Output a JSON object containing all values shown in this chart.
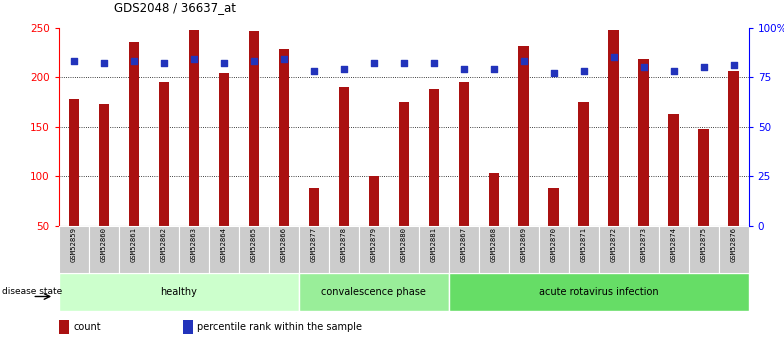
{
  "title": "GDS2048 / 36637_at",
  "samples": [
    "GSM52859",
    "GSM52860",
    "GSM52861",
    "GSM52862",
    "GSM52863",
    "GSM52864",
    "GSM52865",
    "GSM52866",
    "GSM52877",
    "GSM52878",
    "GSM52879",
    "GSM52880",
    "GSM52881",
    "GSM52867",
    "GSM52868",
    "GSM52869",
    "GSM52870",
    "GSM52871",
    "GSM52872",
    "GSM52873",
    "GSM52874",
    "GSM52875",
    "GSM52876"
  ],
  "counts": [
    178,
    173,
    235,
    195,
    248,
    204,
    247,
    228,
    88,
    190,
    100,
    175,
    188,
    195,
    103,
    231,
    88,
    175,
    248,
    218,
    163,
    148,
    206
  ],
  "percentiles": [
    83,
    82,
    83,
    82,
    84,
    82,
    83,
    84,
    78,
    79,
    82,
    82,
    82,
    79,
    79,
    83,
    77,
    78,
    85,
    80,
    78,
    80,
    81
  ],
  "groups": [
    {
      "label": "healthy",
      "start": 0,
      "end": 8,
      "color": "#ccffcc"
    },
    {
      "label": "convalescence phase",
      "start": 8,
      "end": 13,
      "color": "#99ee99"
    },
    {
      "label": "acute rotavirus infection",
      "start": 13,
      "end": 23,
      "color": "#66dd66"
    }
  ],
  "bar_color": "#aa1111",
  "dot_color": "#2233bb",
  "ylim_left": [
    50,
    250
  ],
  "ylim_right": [
    0,
    100
  ],
  "yticks_left": [
    50,
    100,
    150,
    200,
    250
  ],
  "yticks_right": [
    0,
    25,
    50,
    75,
    100
  ],
  "yticklabels_right": [
    "0",
    "25",
    "50",
    "75",
    "100%"
  ],
  "grid_values": [
    100,
    150,
    200
  ],
  "background_color": "#ffffff",
  "legend_items": [
    {
      "label": "count",
      "color": "#aa1111"
    },
    {
      "label": "percentile rank within the sample",
      "color": "#2233bb"
    }
  ]
}
